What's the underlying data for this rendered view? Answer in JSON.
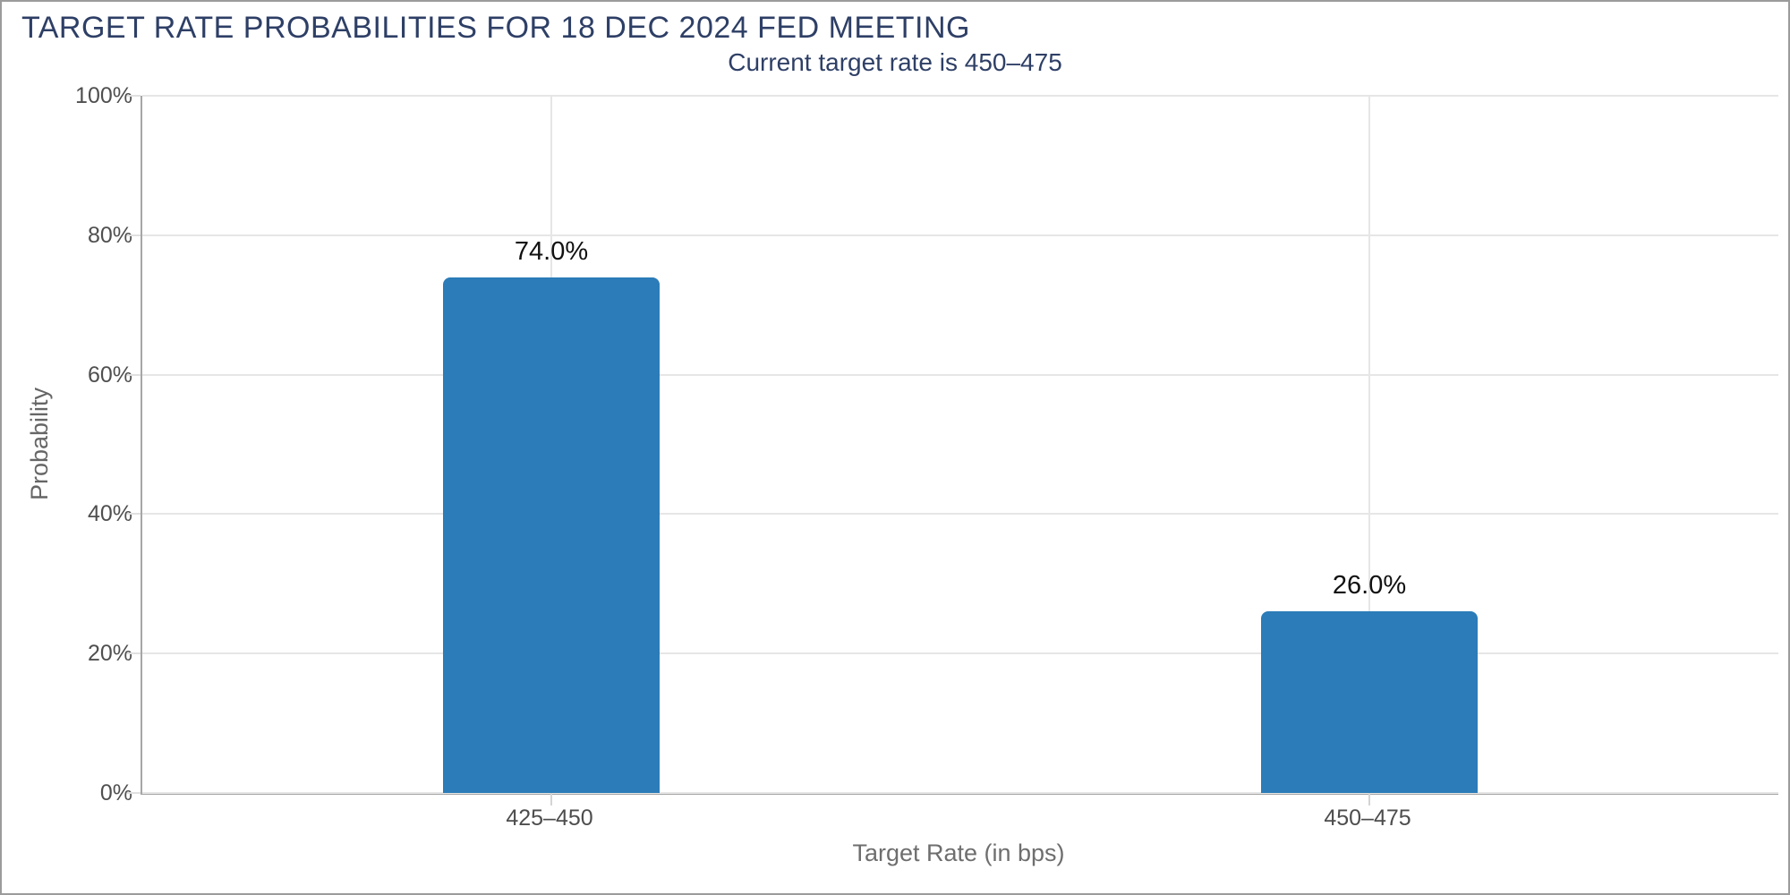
{
  "chart_data": {
    "type": "bar",
    "title": "TARGET RATE PROBABILITIES FOR 18 DEC 2024 FED MEETING",
    "subtitle": "Current target rate is 450–475",
    "xlabel": "Target Rate (in bps)",
    "ylabel": "Probability",
    "categories": [
      "425–450",
      "450–475"
    ],
    "values": [
      74.0,
      26.0
    ],
    "value_labels": [
      "74.0%",
      "26.0%"
    ],
    "ylim": [
      0,
      100
    ],
    "yticks": [
      0,
      20,
      40,
      60,
      80,
      100
    ],
    "ytick_labels": [
      "0%",
      "20%",
      "40%",
      "60%",
      "80%",
      "100%"
    ],
    "grid": true,
    "legend": "none",
    "colors": {
      "bar": "#2b7cb8",
      "title_text": "#2e3f66",
      "axis_line": "#a6a6a6",
      "grid_line": "#e6e6e6",
      "tick_text": "#4f4f4f"
    }
  }
}
